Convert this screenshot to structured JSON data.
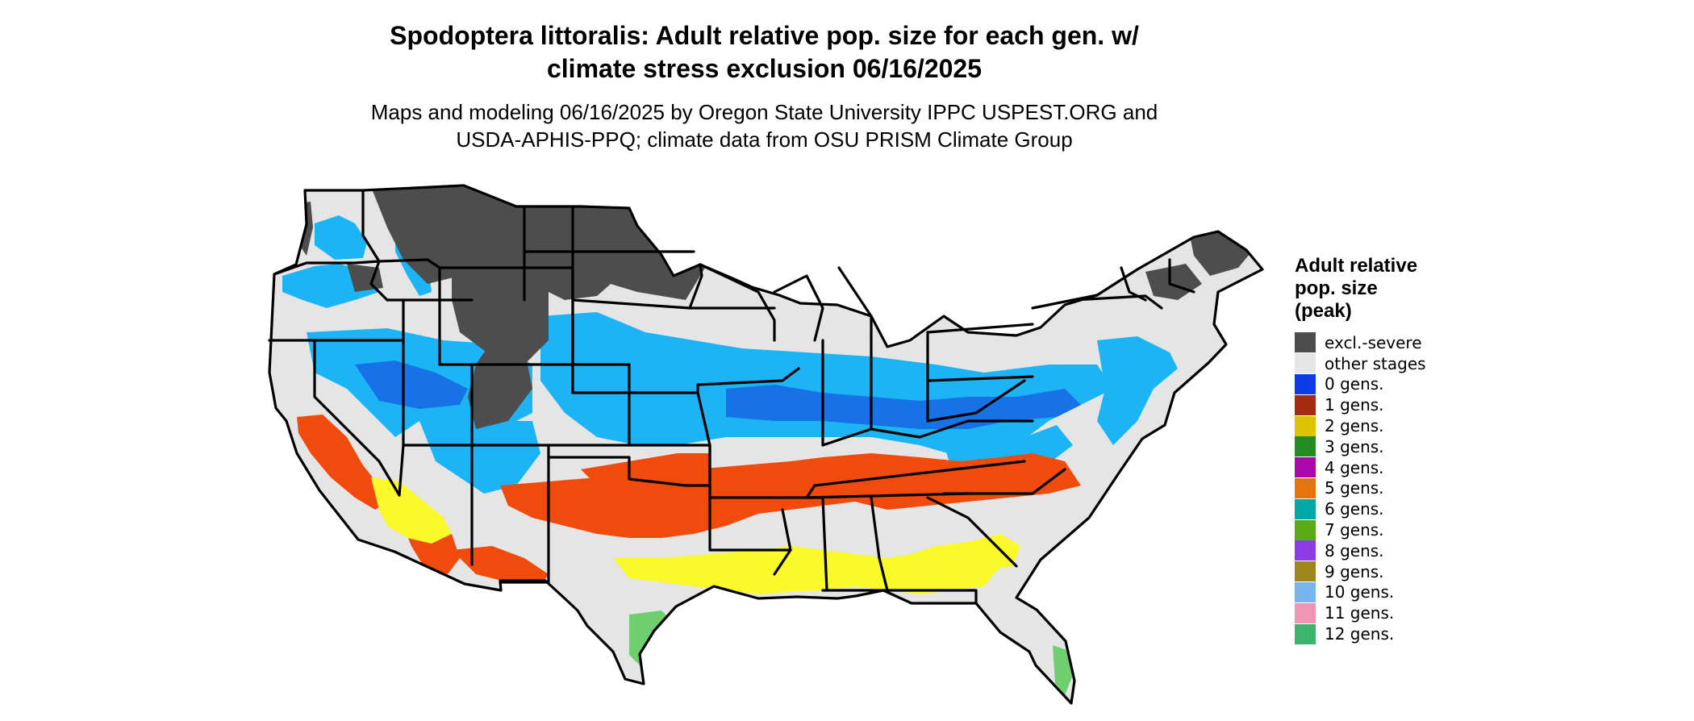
{
  "title": {
    "line1": "Spodoptera littoralis: Adult relative pop. size for each gen. w/",
    "line2": "climate stress exclusion 06/16/2025"
  },
  "subtitle": {
    "line1": "Maps and modeling 06/16/2025 by Oregon State University IPPC USPEST.ORG and",
    "line2": "USDA-APHIS-PPQ; climate data from OSU PRISM Climate Group"
  },
  "legend": {
    "title_lines": [
      "Adult relative",
      "pop. size",
      "(peak)"
    ],
    "items": [
      {
        "label": "excl.-severe",
        "color": "#4d4d4d"
      },
      {
        "label": "other stages",
        "color": "#e5e5e5"
      },
      {
        "label": "0 gens.",
        "color": "#0b3ce6"
      },
      {
        "label": "1 gens.",
        "color": "#a52a12"
      },
      {
        "label": "2 gens.",
        "color": "#dcc400"
      },
      {
        "label": "3 gens.",
        "color": "#228b22"
      },
      {
        "label": "4 gens.",
        "color": "#aa0aaa"
      },
      {
        "label": "5 gens.",
        "color": "#e5740c"
      },
      {
        "label": "6 gens.",
        "color": "#00a8a8"
      },
      {
        "label": "7 gens.",
        "color": "#5aaa14"
      },
      {
        "label": "8 gens.",
        "color": "#8c3ce6"
      },
      {
        "label": "9 gens.",
        "color": "#a0861e"
      },
      {
        "label": "10 gens.",
        "color": "#78b4f0"
      },
      {
        "label": "11 gens.",
        "color": "#f096b4"
      },
      {
        "label": "12 gens.",
        "color": "#3cb46e"
      }
    ]
  },
  "map_colors": {
    "background": "#e5e5e5",
    "excluded": "#4d4d4d",
    "cool_light": "#1cb4f5",
    "cool_dark": "#1672e6",
    "one_gen_area": "#f04a0c",
    "two_gen_area": "#fafa2a",
    "twelve_gen_area": "#6fcf6f",
    "four_gen_area": "#e010e0",
    "border": "#000000"
  }
}
